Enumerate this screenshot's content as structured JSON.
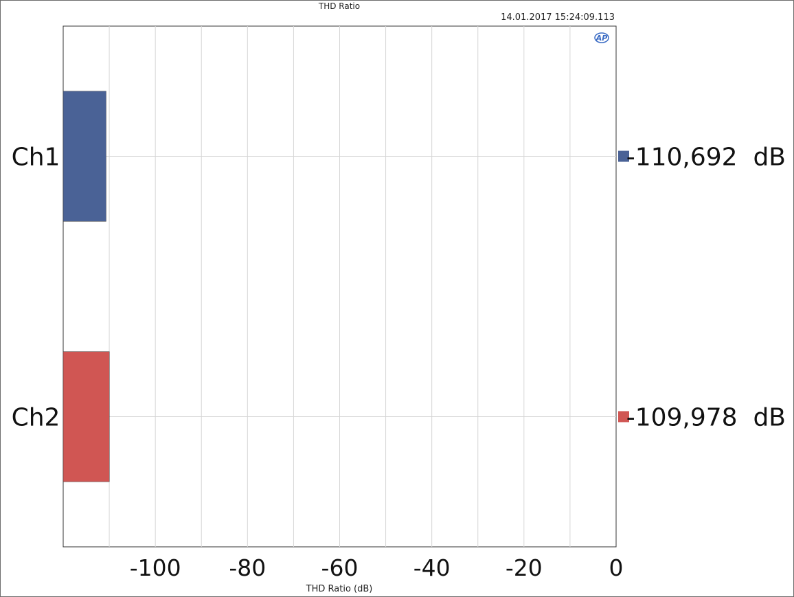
{
  "header": {
    "title": "THD Ratio",
    "timestamp": "14.01.2017 15:24:09.113",
    "logo_text": "AP"
  },
  "chart_data": {
    "type": "bar",
    "orientation": "horizontal",
    "title": "THD Ratio",
    "xlabel": "THD Ratio (dB)",
    "ylabel": "",
    "xlim": [
      -120,
      0
    ],
    "xticks": [
      -100,
      -80,
      -60,
      -40,
      -20,
      0
    ],
    "grid": true,
    "categories": [
      "Ch1",
      "Ch2"
    ],
    "values": [
      -110.692,
      -109.978
    ],
    "value_labels": [
      "-110,692  dB",
      "-109,978  dB"
    ],
    "colors": [
      "#4a6296",
      "#d05653"
    ]
  }
}
